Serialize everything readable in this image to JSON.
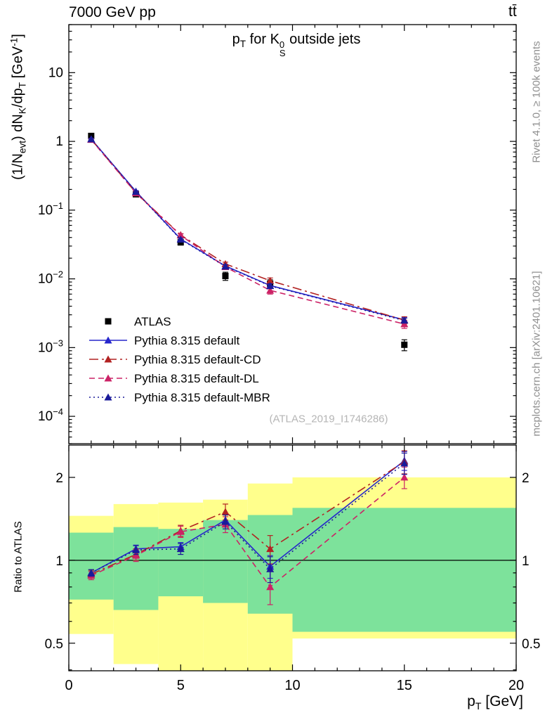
{
  "header": {
    "left": "7000 GeV pp",
    "right": "tt̄"
  },
  "side": {
    "top": "Rivet 4.1.0, ≥ 100k events",
    "bottom": "mcplots.cern.ch [arXiv:2401.10621]"
  },
  "watermark": "(ATLAS_2019_I1746286)",
  "chart_data": [
    {
      "type": "line",
      "panel": "main",
      "title": "p_{T} for K^{0}_{S} outside jets",
      "ylabel": "(1/N_{evt}) dN_{K}/dp_{T} [GeV^{-1}]",
      "yscale": "log",
      "x": [
        1,
        3,
        5,
        7,
        9,
        15
      ],
      "xlim": [
        0,
        20
      ],
      "ylim": [
        4e-05,
        50
      ],
      "yticks": [
        10,
        1,
        0.1,
        0.01,
        0.001,
        0.0001
      ],
      "xticks": [
        0,
        5,
        10,
        15,
        20
      ],
      "series": [
        {
          "name": "ATLAS",
          "color": "#000000",
          "marker": "square",
          "line": "none",
          "values": [
            1.2,
            0.17,
            0.034,
            0.011,
            0.0085,
            0.0011
          ],
          "errors": [
            0.06,
            0.01,
            0.003,
            0.0015,
            0.0012,
            0.0002
          ]
        },
        {
          "name": "Pythia 8.315 default",
          "color": "#2626cc",
          "marker": "triangle",
          "line": "solid",
          "values": [
            1.08,
            0.187,
            0.038,
            0.0154,
            0.008,
            0.00253
          ],
          "errors": [
            0.03,
            0.005,
            0.0015,
            0.0008,
            0.0006,
            0.0002
          ]
        },
        {
          "name": "Pythia 8.315 default-CD",
          "color": "#b22222",
          "marker": "triangle",
          "line": "dashdot",
          "values": [
            1.07,
            0.179,
            0.0435,
            0.0165,
            0.0094,
            0.00251
          ],
          "errors": [
            0.04,
            0.007,
            0.002,
            0.001,
            0.0009,
            0.0003
          ]
        },
        {
          "name": "Pythia 8.315 default-DL",
          "color": "#cc2266",
          "marker": "triangle",
          "line": "dashed",
          "values": [
            1.06,
            0.177,
            0.043,
            0.0149,
            0.0068,
            0.0022
          ],
          "errors": [
            0.04,
            0.007,
            0.002,
            0.001,
            0.0008,
            0.0003
          ]
        },
        {
          "name": "Pythia 8.315 default-MBR",
          "color": "#1a1a99",
          "marker": "triangle",
          "line": "dotted",
          "values": [
            1.08,
            0.185,
            0.0375,
            0.0152,
            0.0079,
            0.00248
          ],
          "errors": [
            0.03,
            0.005,
            0.0015,
            0.0008,
            0.0006,
            0.0002
          ]
        }
      ]
    },
    {
      "type": "ratio",
      "panel": "ratio",
      "ylabel": "Ratio to ATLAS",
      "xlabel": "p_{T} [GeV]",
      "yscale": "log",
      "x": [
        1,
        3,
        5,
        7,
        9,
        15
      ],
      "xlim": [
        0,
        20
      ],
      "ylim": [
        0.397,
        2.62
      ],
      "yticks": [
        0.5,
        1,
        2
      ],
      "xticks": [
        0,
        5,
        10,
        15,
        20
      ],
      "reference_line": 1,
      "band_colors": {
        "outer": "#ffff8c",
        "inner": "#7de29b"
      },
      "bands": [
        {
          "x0": 0,
          "x1": 2,
          "outer": [
            0.54,
            1.45
          ],
          "inner": [
            0.72,
            1.26
          ]
        },
        {
          "x0": 2,
          "x1": 4,
          "outer": [
            0.42,
            1.6
          ],
          "inner": [
            0.66,
            1.32
          ]
        },
        {
          "x0": 4,
          "x1": 6,
          "outer": [
            0.35,
            1.62
          ],
          "inner": [
            0.74,
            1.3
          ]
        },
        {
          "x0": 6,
          "x1": 8,
          "outer": [
            0.3,
            1.66
          ],
          "inner": [
            0.7,
            1.4
          ]
        },
        {
          "x0": 8,
          "x1": 10,
          "outer": [
            0.3,
            1.9
          ],
          "inner": [
            0.64,
            1.46
          ]
        },
        {
          "x0": 10,
          "x1": 20,
          "outer": [
            0.52,
            2.0
          ],
          "inner": [
            0.55,
            1.55
          ]
        }
      ],
      "series": [
        {
          "name": "Pythia 8.315 default",
          "color": "#2626cc",
          "marker": "triangle",
          "line": "solid",
          "values": [
            0.9,
            1.1,
            1.12,
            1.4,
            0.95,
            2.3
          ],
          "errors": [
            0.025,
            0.035,
            0.04,
            0.07,
            0.09,
            0.18
          ]
        },
        {
          "name": "Pythia 8.315 default-CD",
          "color": "#b22222",
          "marker": "triangle",
          "line": "dashdot",
          "values": [
            0.89,
            1.05,
            1.28,
            1.5,
            1.1,
            2.28
          ],
          "errors": [
            0.03,
            0.05,
            0.06,
            0.1,
            0.13,
            0.22
          ]
        },
        {
          "name": "Pythia 8.315 default-DL",
          "color": "#cc2266",
          "marker": "triangle",
          "line": "dashed",
          "values": [
            0.88,
            1.04,
            1.27,
            1.35,
            0.8,
            2.0
          ],
          "errors": [
            0.03,
            0.05,
            0.06,
            0.09,
            0.11,
            0.18
          ]
        },
        {
          "name": "Pythia 8.315 default-MBR",
          "color": "#1a1a99",
          "marker": "triangle",
          "line": "dotted",
          "values": [
            0.9,
            1.09,
            1.1,
            1.38,
            0.93,
            2.25
          ],
          "errors": [
            0.025,
            0.04,
            0.05,
            0.08,
            0.1,
            0.2
          ]
        }
      ]
    }
  ]
}
